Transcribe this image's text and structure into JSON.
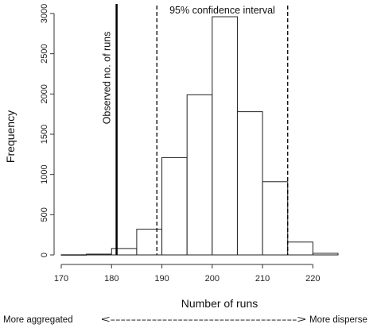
{
  "chart_data": {
    "type": "bar",
    "title": "",
    "xlabel": "Number of runs",
    "ylabel": "Frequency",
    "xlim": [
      170,
      225
    ],
    "ylim": [
      0,
      3000
    ],
    "x_ticks": [
      "170",
      "180",
      "190",
      "200",
      "210",
      "220"
    ],
    "y_ticks": [
      "0",
      "500",
      "1000",
      "1500",
      "2000",
      "2500",
      "3000"
    ],
    "bins": [
      {
        "start": 170,
        "end": 175,
        "value": 2
      },
      {
        "start": 175,
        "end": 180,
        "value": 10
      },
      {
        "start": 180,
        "end": 185,
        "value": 80
      },
      {
        "start": 185,
        "end": 190,
        "value": 320
      },
      {
        "start": 190,
        "end": 195,
        "value": 1210
      },
      {
        "start": 195,
        "end": 200,
        "value": 1990
      },
      {
        "start": 200,
        "end": 205,
        "value": 2960
      },
      {
        "start": 205,
        "end": 210,
        "value": 1780
      },
      {
        "start": 210,
        "end": 215,
        "value": 910
      },
      {
        "start": 215,
        "end": 220,
        "value": 160
      },
      {
        "start": 220,
        "end": 225,
        "value": 20
      }
    ],
    "observed_line": {
      "x": 181,
      "label": "Observed no. of runs"
    },
    "confidence_interval": {
      "lower": 189,
      "upper": 215,
      "label": "95% confidence interval"
    },
    "grid": false
  },
  "footer": {
    "left": "More aggregated",
    "arrow": "<------------------------------------>",
    "right": "More disperse"
  }
}
